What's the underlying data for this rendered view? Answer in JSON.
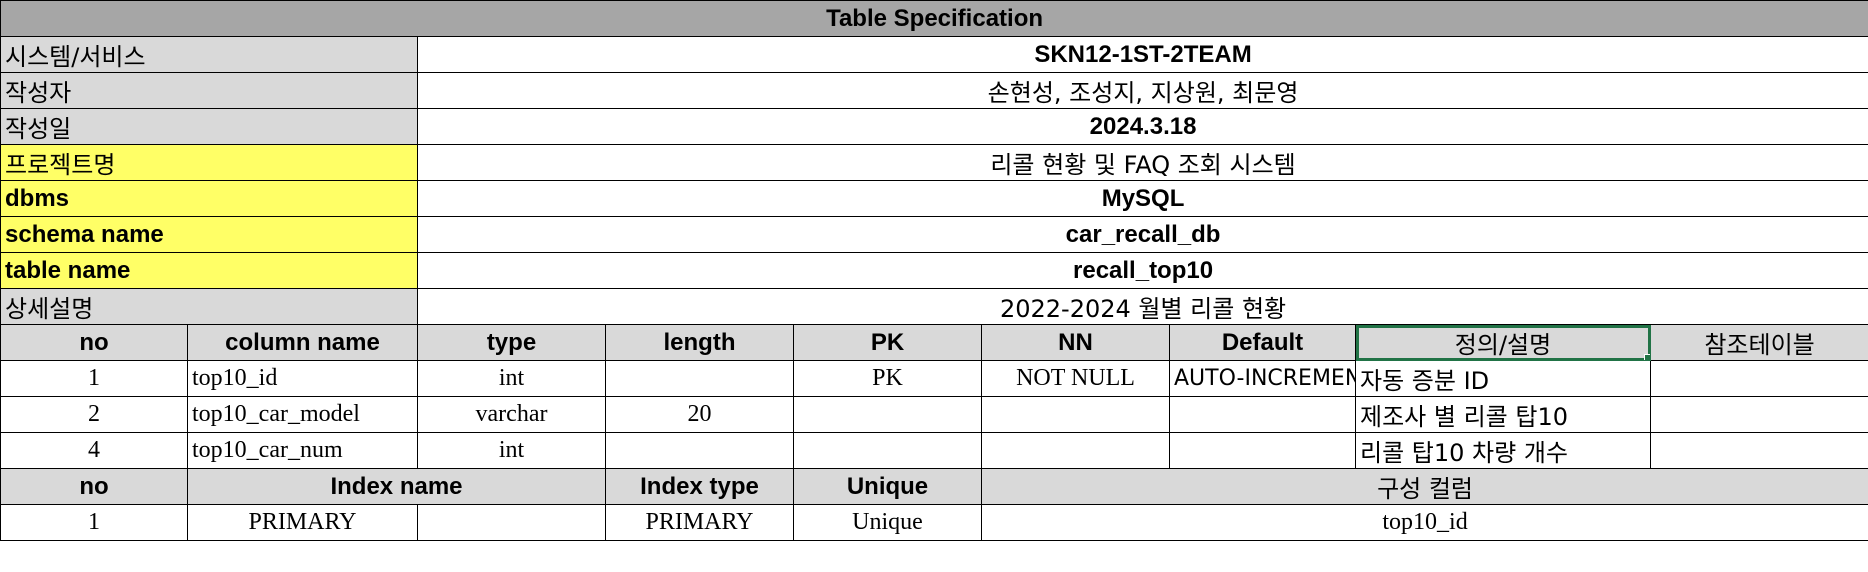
{
  "title": "Table Specification",
  "meta": [
    {
      "label": "시스템/서비스",
      "value": "SKN12-1ST-2TEAM"
    },
    {
      "label": "작성자",
      "value": "손현성, 조성지, 지상원, 최문영"
    },
    {
      "label": "작성일",
      "value": "2024.3.18"
    },
    {
      "label": "프로젝트명",
      "value": "리콜 현황 및 FAQ 조회 시스템"
    },
    {
      "label": "dbms",
      "value": "MySQL"
    },
    {
      "label": "schema name",
      "value": "car_recall_db"
    },
    {
      "label": "table name",
      "value": "recall_top10"
    },
    {
      "label": "상세설명",
      "value": "2022-2024 월별 리콜 현황"
    }
  ],
  "columns_header": [
    "no",
    "column name",
    "type",
    "length",
    "PK",
    "NN",
    "Default",
    "정의/설명",
    "참조테이블"
  ],
  "columns": [
    {
      "no": "1",
      "name": "top10_id",
      "type": "int",
      "length": "",
      "pk": "PK",
      "nn": "NOT NULL",
      "default": "AUTO-INCREMENT",
      "desc": "자동 증분 ID",
      "ref": ""
    },
    {
      "no": "2",
      "name": "top10_car_model",
      "type": "varchar",
      "length": "20",
      "pk": "",
      "nn": "",
      "default": "",
      "desc": "제조사 별 리콜 탑10",
      "ref": ""
    },
    {
      "no": "4",
      "name": "top10_car_num",
      "type": "int",
      "length": "",
      "pk": "",
      "nn": "",
      "default": "",
      "desc": "리콜 탑10 차량 개수",
      "ref": ""
    }
  ],
  "index_header": [
    "no",
    "Index name",
    "Index type",
    "Unique",
    "구성 컬럼"
  ],
  "indexes": [
    {
      "no": "1",
      "name": "PRIMARY",
      "type": "PRIMARY",
      "unique": "Unique",
      "columns": "top10_id"
    }
  ],
  "colors": {
    "title_bg": "#a6a6a6",
    "gray_bg": "#d9d9d9",
    "yellow_bg": "#ffff66",
    "selection": "#217346"
  }
}
